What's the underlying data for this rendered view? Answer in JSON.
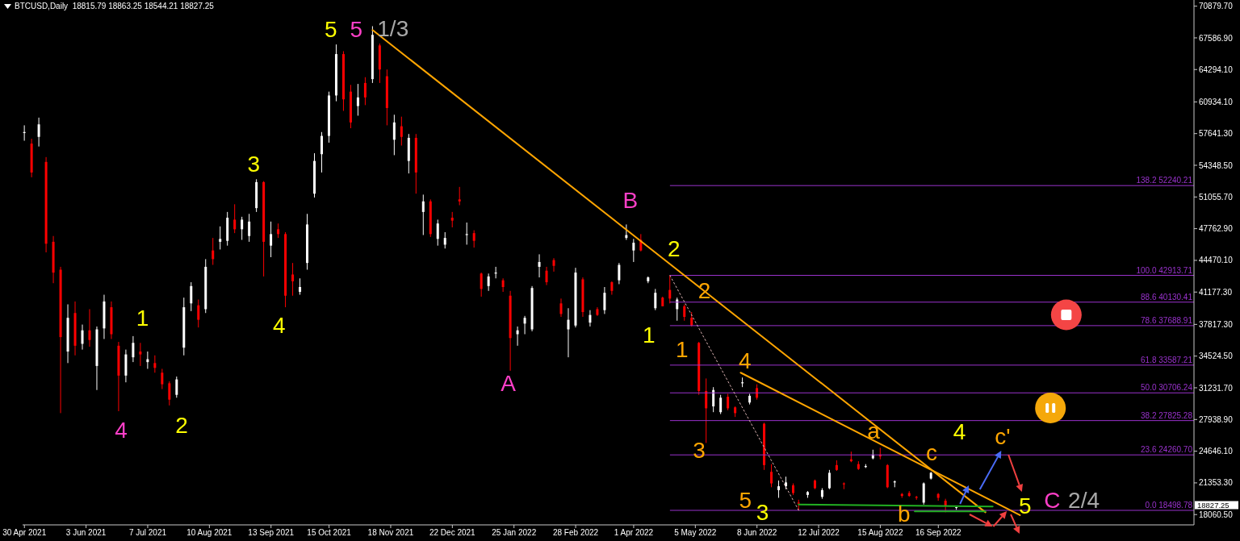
{
  "chart_data": {
    "type": "candlestick",
    "title": "BTCUSD,Daily  18815.79 18863.25 18544.21 18827.25",
    "x": [
      "2021-04-30",
      "2021-05-04",
      "2021-05-08",
      "2021-05-12",
      "2021-05-16",
      "2021-05-20",
      "2021-05-24",
      "2021-05-28",
      "2021-06-01",
      "2021-06-05",
      "2021-06-09",
      "2021-06-13",
      "2021-06-17",
      "2021-06-21",
      "2021-06-25",
      "2021-06-29",
      "2021-07-03",
      "2021-07-07",
      "2021-07-11",
      "2021-07-15",
      "2021-07-19",
      "2021-07-23",
      "2021-07-27",
      "2021-07-31",
      "2021-08-04",
      "2021-08-08",
      "2021-08-12",
      "2021-08-16",
      "2021-08-20",
      "2021-08-24",
      "2021-08-28",
      "2021-09-01",
      "2021-09-05",
      "2021-09-09",
      "2021-09-13",
      "2021-09-17",
      "2021-09-21",
      "2021-09-25",
      "2021-09-29",
      "2021-10-03",
      "2021-10-07",
      "2021-10-11",
      "2021-10-15",
      "2021-10-19",
      "2021-10-23",
      "2021-10-27",
      "2021-10-31",
      "2021-11-04",
      "2021-11-08",
      "2021-11-12",
      "2021-11-16",
      "2021-11-20",
      "2021-11-24",
      "2021-11-28",
      "2021-12-02",
      "2021-12-06",
      "2021-12-10",
      "2021-12-14",
      "2021-12-18",
      "2021-12-22",
      "2021-12-26",
      "2021-12-30",
      "2022-01-03",
      "2022-01-07",
      "2022-01-11",
      "2022-01-15",
      "2022-01-19",
      "2022-01-23",
      "2022-01-27",
      "2022-01-31",
      "2022-02-04",
      "2022-02-08",
      "2022-02-12",
      "2022-02-16",
      "2022-02-20",
      "2022-02-24",
      "2022-02-28",
      "2022-03-04",
      "2022-03-08",
      "2022-03-12",
      "2022-03-16",
      "2022-03-20",
      "2022-03-24",
      "2022-03-28",
      "2022-04-01",
      "2022-04-05",
      "2022-04-09",
      "2022-04-13",
      "2022-04-17",
      "2022-04-21",
      "2022-04-25",
      "2022-04-29",
      "2022-05-03",
      "2022-05-07",
      "2022-05-11",
      "2022-05-15",
      "2022-05-19",
      "2022-05-23",
      "2022-05-27",
      "2022-05-31",
      "2022-06-04",
      "2022-06-08",
      "2022-06-12",
      "2022-06-16",
      "2022-06-20",
      "2022-06-24",
      "2022-06-28",
      "2022-07-01",
      "2022-07-06",
      "2022-07-10",
      "2022-07-14",
      "2022-07-18",
      "2022-07-22",
      "2022-07-26",
      "2022-07-30",
      "2022-08-03",
      "2022-08-07",
      "2022-08-11",
      "2022-08-15",
      "2022-08-19",
      "2022-08-23",
      "2022-08-27",
      "2022-08-31",
      "2022-09-04",
      "2022-09-08",
      "2022-09-12",
      "2022-09-16",
      "2022-09-20",
      "2022-09-26"
    ],
    "ohlc": [
      [
        57700,
        58500,
        56900,
        57800
      ],
      [
        56600,
        57100,
        53100,
        53600
      ],
      [
        57300,
        59300,
        56300,
        58600
      ],
      [
        54700,
        55200,
        45300,
        46200
      ],
      [
        46400,
        47000,
        42100,
        43200
      ],
      [
        43500,
        43800,
        28600,
        36500
      ],
      [
        35000,
        39900,
        33800,
        38500
      ],
      [
        39000,
        40200,
        34600,
        35600
      ],
      [
        35800,
        37800,
        35200,
        37200
      ],
      [
        37200,
        39400,
        35500,
        36200
      ],
      [
        33500,
        37600,
        31000,
        37300
      ],
      [
        37400,
        40900,
        36300,
        40200
      ],
      [
        39600,
        40200,
        36300,
        36800
      ],
      [
        35600,
        36000,
        28800,
        32500
      ],
      [
        32500,
        35200,
        31800,
        34700
      ],
      [
        34400,
        36600,
        33900,
        35900
      ],
      [
        35000,
        35900,
        33500,
        34700
      ],
      [
        33900,
        35000,
        33200,
        34200
      ],
      [
        33800,
        34600,
        32800,
        33300
      ],
      [
        32800,
        33200,
        31100,
        31600
      ],
      [
        31700,
        31900,
        29400,
        30000
      ],
      [
        30500,
        32400,
        30200,
        32100
      ],
      [
        35400,
        40600,
        34600,
        39600
      ],
      [
        40000,
        42200,
        39200,
        41800
      ],
      [
        39800,
        40400,
        37500,
        38300
      ],
      [
        39400,
        44600,
        39000,
        43800
      ],
      [
        45500,
        46800,
        44000,
        44600
      ],
      [
        46400,
        48000,
        45600,
        46700
      ],
      [
        46500,
        49500,
        46000,
        48900
      ],
      [
        48700,
        50300,
        47300,
        47700
      ],
      [
        47700,
        49000,
        46600,
        48700
      ],
      [
        47000,
        49300,
        46400,
        48500
      ],
      [
        49900,
        52900,
        49500,
        52600
      ],
      [
        52600,
        52700,
        42800,
        46400
      ],
      [
        46000,
        48500,
        44800,
        47200
      ],
      [
        47700,
        48300,
        46800,
        47200
      ],
      [
        47200,
        47400,
        39600,
        40800
      ],
      [
        43000,
        44200,
        40800,
        42300
      ],
      [
        41200,
        42600,
        40900,
        41700
      ],
      [
        44200,
        49300,
        43500,
        48200
      ],
      [
        51400,
        55600,
        51000,
        54800
      ],
      [
        55500,
        57800,
        53600,
        57400
      ],
      [
        57400,
        62000,
        56700,
        61600
      ],
      [
        61600,
        66900,
        61000,
        65900
      ],
      [
        65900,
        66200,
        60000,
        61200
      ],
      [
        62000,
        62700,
        58200,
        58800
      ],
      [
        60500,
        62800,
        59500,
        61400
      ],
      [
        62900,
        63500,
        60600,
        61400
      ],
      [
        63300,
        68800,
        62900,
        67900
      ],
      [
        66800,
        67000,
        62900,
        64300
      ],
      [
        63600,
        64300,
        58500,
        60300
      ],
      [
        57000,
        59600,
        55400,
        58800
      ],
      [
        58400,
        59400,
        56400,
        57300
      ],
      [
        54800,
        57600,
        53500,
        57200
      ],
      [
        57200,
        57600,
        51400,
        53600
      ],
      [
        49500,
        51300,
        47100,
        50600
      ],
      [
        50600,
        50800,
        46900,
        47200
      ],
      [
        46700,
        48700,
        46000,
        48300
      ],
      [
        46100,
        47400,
        45700,
        46800
      ],
      [
        48900,
        49500,
        47900,
        48600
      ],
      [
        50800,
        52100,
        50200,
        50600
      ],
      [
        47100,
        48400,
        46100,
        47200
      ],
      [
        47300,
        47600,
        45800,
        46500
      ],
      [
        43100,
        43200,
        40700,
        41500
      ],
      [
        41800,
        43100,
        41300,
        42800
      ],
      [
        43100,
        43800,
        42600,
        43200
      ],
      [
        42400,
        42600,
        41200,
        41700
      ],
      [
        40800,
        41300,
        33000,
        36400
      ],
      [
        36800,
        37600,
        35600,
        37200
      ],
      [
        37900,
        38700,
        36800,
        38500
      ],
      [
        37300,
        41800,
        37100,
        41600
      ],
      [
        43800,
        45100,
        42700,
        44300
      ],
      [
        43400,
        43800,
        41900,
        42200
      ],
      [
        44500,
        44700,
        43300,
        43900
      ],
      [
        40000,
        40500,
        38600,
        38900
      ],
      [
        37300,
        39500,
        34400,
        38300
      ],
      [
        37700,
        43700,
        37500,
        43200
      ],
      [
        42500,
        42700,
        38600,
        39100
      ],
      [
        38000,
        39300,
        37600,
        38800
      ],
      [
        39400,
        39600,
        38700,
        38800
      ],
      [
        39300,
        41700,
        38900,
        41100
      ],
      [
        42200,
        42300,
        40900,
        41300
      ],
      [
        42400,
        44200,
        42000,
        44000
      ],
      [
        46800,
        48200,
        46600,
        47100
      ],
      [
        45500,
        46700,
        44300,
        46300
      ],
      [
        46600,
        47200,
        45400,
        45500
      ],
      [
        42300,
        42800,
        42100,
        42700
      ],
      [
        39500,
        41500,
        39300,
        41100
      ],
      [
        40600,
        40700,
        39700,
        39700
      ],
      [
        41400,
        42900,
        40000,
        40500
      ],
      [
        39400,
        40600,
        38200,
        40400
      ],
      [
        39700,
        39900,
        38200,
        38600
      ],
      [
        38500,
        39100,
        37600,
        37700
      ],
      [
        35900,
        36000,
        30500,
        30900
      ],
      [
        30900,
        32200,
        25500,
        29100
      ],
      [
        29300,
        31300,
        28700,
        31000
      ],
      [
        28700,
        30500,
        28500,
        30200
      ],
      [
        30300,
        30600,
        28900,
        29100
      ],
      [
        29200,
        29300,
        28200,
        28600
      ],
      [
        31700,
        32300,
        31300,
        31800
      ],
      [
        29700,
        30600,
        29500,
        30400
      ],
      [
        31200,
        31600,
        30000,
        30200
      ],
      [
        27500,
        27600,
        22700,
        23200
      ],
      [
        22500,
        23300,
        20900,
        21300
      ],
      [
        20600,
        21600,
        19800,
        21000
      ],
      [
        21000,
        22000,
        20700,
        21400
      ],
      [
        21100,
        21300,
        20100,
        20300
      ],
      [
        19300,
        19600,
        18500,
        19200
      ],
      [
        20100,
        20500,
        19800,
        20400
      ],
      [
        21600,
        21700,
        20700,
        20800
      ],
      [
        19900,
        20800,
        19700,
        20600
      ],
      [
        20800,
        22700,
        20700,
        22400
      ],
      [
        23200,
        23700,
        22600,
        22700
      ],
      [
        21300,
        21400,
        20700,
        21200
      ],
      [
        23800,
        24600,
        23500,
        23600
      ],
      [
        23300,
        23600,
        22700,
        22800
      ],
      [
        23000,
        23300,
        22900,
        23100
      ],
      [
        23900,
        24800,
        23800,
        24300
      ],
      [
        24300,
        25000,
        23800,
        24100
      ],
      [
        23200,
        23300,
        20800,
        20900
      ],
      [
        21400,
        21600,
        20900,
        21500
      ],
      [
        20200,
        20300,
        19800,
        20000
      ],
      [
        20300,
        20500,
        19900,
        20000
      ],
      [
        19900,
        20000,
        19600,
        19800
      ],
      [
        19300,
        21400,
        19100,
        21300
      ],
      [
        21800,
        22500,
        21700,
        22400
      ],
      [
        20200,
        20300,
        19500,
        19800
      ],
      [
        19500,
        19700,
        18300,
        19000
      ],
      [
        18815.79,
        18863.25,
        18544.21,
        18827.25
      ]
    ],
    "colors": [
      "#ffffff",
      "#ff0000",
      "#ffffff",
      "#ff0000",
      "#ff0000",
      "#ff0000",
      "#ffffff",
      "#ff0000",
      "#ffffff",
      "#ff0000",
      "#ffffff",
      "#ffffff",
      "#ff0000",
      "#ff0000",
      "#ffffff",
      "#ffffff",
      "#ff0000",
      "#ffffff",
      "#ff0000",
      "#ff0000",
      "#ff0000",
      "#ffffff",
      "#ffffff",
      "#ffffff",
      "#ff0000",
      "#ffffff",
      "#ff0000",
      "#ffffff",
      "#ffffff",
      "#ff0000",
      "#ffffff",
      "#ffffff",
      "#ffffff",
      "#ff0000",
      "#ffffff",
      "#ff0000",
      "#ff0000",
      "#ff0000",
      "#ffffff",
      "#ffffff",
      "#ffffff",
      "#ffffff",
      "#ffffff",
      "#ffffff",
      "#ff0000",
      "#ff0000",
      "#ffffff",
      "#ff0000",
      "#ffffff",
      "#ff0000",
      "#ff0000",
      "#ffffff",
      "#ff0000",
      "#ffffff",
      "#ff0000",
      "#ffffff",
      "#ff0000",
      "#ffffff",
      "#ffffff",
      "#ff0000",
      "#ff0000",
      "#ffffff",
      "#ff0000",
      "#ff0000",
      "#ffffff",
      "#ffffff",
      "#ff0000",
      "#ff0000",
      "#ffffff",
      "#ffffff",
      "#ffffff",
      "#ffffff",
      "#ff0000",
      "#ff0000",
      "#ff0000",
      "#ffffff",
      "#ffffff",
      "#ff0000",
      "#ffffff",
      "#ff0000",
      "#ffffff",
      "#ff0000",
      "#ffffff",
      "#ffffff",
      "#ffffff",
      "#ff0000",
      "#ffffff",
      "#ffffff",
      "#ff0000",
      "#ff0000",
      "#ffffff",
      "#ff0000",
      "#ff0000",
      "#ff0000",
      "#ff0000",
      "#ffffff",
      "#ffffff",
      "#ff0000",
      "#ff0000",
      "#ffffff",
      "#ffffff",
      "#ff0000",
      "#ff0000",
      "#ff0000",
      "#ffffff",
      "#ffffff",
      "#ff0000",
      "#ff0000",
      "#ffffff",
      "#ff0000",
      "#ffffff",
      "#ffffff",
      "#ff0000",
      "#ff0000",
      "#ff0000",
      "#ff0000",
      "#ffffff",
      "#ffffff",
      "#ff0000",
      "#ff0000",
      "#ffffff",
      "#ff0000",
      "#ff0000",
      "#ff0000",
      "#ffffff",
      "#ffffff",
      "#ff0000",
      "#ff0000",
      "#ffffff"
    ],
    "series": [
      {
        "type": "line",
        "color": "#ffa500",
        "line_style": "solid",
        "x": [
          "2021-11-08",
          "2022-10-12"
        ],
        "values": [
          68400,
          18300
        ]
      },
      {
        "type": "line",
        "color": "#ffa500",
        "line_style": "solid",
        "x": [
          "2022-05-30",
          "2022-10-31"
        ],
        "values": [
          32800,
          18000
        ]
      },
      {
        "type": "line",
        "color": "#22b022",
        "line_style": "solid",
        "x": [
          "2022-07-01",
          "2022-10-16"
        ],
        "values": [
          19100,
          18900
        ]
      },
      {
        "type": "line",
        "color": "#22b022",
        "line_style": "solid",
        "x": [
          "2022-09-03",
          "2022-10-12"
        ],
        "values": [
          18400,
          18400
        ]
      },
      {
        "type": "line",
        "color": "#d8b0b0",
        "line_style": "dotted",
        "x": [
          "2022-04-21",
          "2022-07-01"
        ],
        "values": [
          42900,
          18500
        ]
      }
    ],
    "ref_lines": [
      {
        "axis": "y",
        "value": 52240.21,
        "label": "138.2 52240.21",
        "color": "#9932cc"
      },
      {
        "axis": "y",
        "value": 42913.71,
        "label": "100.0 42913.71",
        "color": "#9932cc"
      },
      {
        "axis": "y",
        "value": 40130.41,
        "label": "88.6 40130.41",
        "color": "#9932cc"
      },
      {
        "axis": "y",
        "value": 37688.91,
        "label": "78.6 37688.91",
        "color": "#9932cc"
      },
      {
        "axis": "y",
        "value": 33587.21,
        "label": "61.8 33587.21",
        "color": "#9932cc"
      },
      {
        "axis": "y",
        "value": 30706.24,
        "label": "50.0 30706.24",
        "color": "#9932cc"
      },
      {
        "axis": "y",
        "value": 27825.28,
        "label": "38.2 27825.28",
        "color": "#9932cc"
      },
      {
        "axis": "y",
        "value": 24260.7,
        "label": "23.6 24260.70",
        "color": "#9932cc"
      },
      {
        "axis": "y",
        "value": 18498.78,
        "label": "0.0 18498.78",
        "color": "#9932cc"
      }
    ],
    "annotations": [
      "5",
      "5",
      "1/3",
      "1",
      "4",
      "2",
      "3",
      "4",
      "A",
      "B",
      "2",
      "2",
      "1",
      "1",
      "4",
      "3",
      "5",
      "3",
      "a",
      "c",
      "b",
      "4",
      "c'",
      {
        "text": "5",
        "x": "2022-10-31",
        "y": 18000
      },
      {
        "text": "C",
        "x": "2022-10-31",
        "y": 18000
      },
      {
        "text": "2/4",
        "x": "2022-10-31",
        "y": 18000
      },
      "18827.25"
    ],
    "xlim": [
      "2021-04-29",
      "2023-02-04"
    ],
    "ylim": [
      16990,
      71520
    ],
    "xticks": [
      {
        "value": "2021-04-30",
        "label": "30 Apr 2021"
      },
      {
        "value": "2021-06-03",
        "label": "3 Jun 2021"
      },
      {
        "value": "2021-07-07",
        "label": "7 Jul 2021"
      },
      {
        "value": "2021-08-10",
        "label": "10 Aug 2021"
      },
      {
        "value": "2021-09-13",
        "label": "13 Sep 2021"
      },
      {
        "value": "2021-10-15",
        "label": "15 Oct 2021"
      },
      {
        "value": "2021-11-18",
        "label": "18 Nov 2021"
      },
      {
        "value": "2021-12-22",
        "label": "22 Dec 2021"
      },
      {
        "value": "2022-01-25",
        "label": "25 Jan 2022"
      },
      {
        "value": "2022-02-28",
        "label": "28 Feb 2022"
      },
      {
        "value": "2022-04-01",
        "label": "1 Apr 2022"
      },
      {
        "value": "2022-05-05",
        "label": "5 May 2022"
      },
      {
        "value": "2022-06-08",
        "label": "8 Jun 2022"
      },
      {
        "value": "2022-07-12",
        "label": "12 Jul 2022"
      },
      {
        "value": "2022-08-15",
        "label": "15 Aug 2022"
      },
      {
        "value": "2022-09-16",
        "label": "16 Sep 2022"
      }
    ],
    "yticks": [
      {
        "value": 18060.5,
        "label": "18060.50"
      },
      {
        "value": 21353.3,
        "label": "21353.30"
      },
      {
        "value": 24646.1,
        "label": "24646.10"
      },
      {
        "value": 27938.9,
        "label": "27938.90"
      },
      {
        "value": 31231.7,
        "label": "31231.70"
      },
      {
        "value": 34524.5,
        "label": "34524.50"
      },
      {
        "value": 37817.3,
        "label": "37817.30"
      },
      {
        "value": 41177.3,
        "label": "41177.30"
      },
      {
        "value": 44470.1,
        "label": "44470.10"
      },
      {
        "value": 47762.9,
        "label": "47762.90"
      },
      {
        "value": 51055.7,
        "label": "51055.70"
      },
      {
        "value": 54348.5,
        "label": "54348.50"
      },
      {
        "value": 57641.3,
        "label": "57641.30"
      },
      {
        "value": 60934.1,
        "label": "60934.10"
      },
      {
        "value": 64294.1,
        "label": "64294.10"
      },
      {
        "value": 67586.9,
        "label": "67586.90"
      },
      {
        "value": 70879.7,
        "label": "70879.70"
      }
    ]
  }
}
